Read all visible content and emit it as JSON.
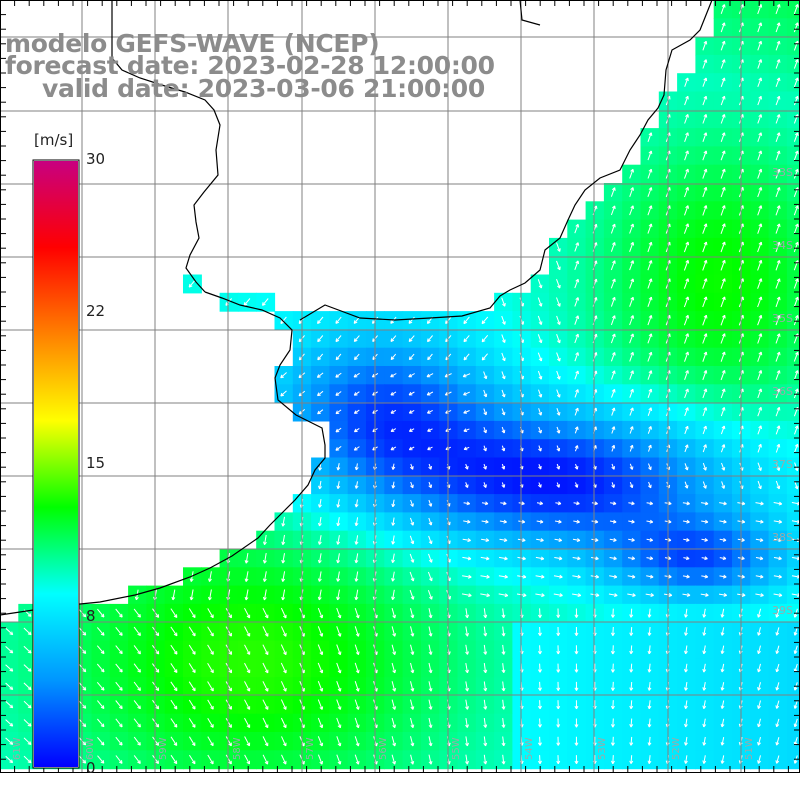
{
  "title": {
    "line1": "modelo GEFS-WAVE (NCEP)",
    "line2": "forecast date: 2023-02-28 12:00:00",
    "line3": "valid date: 2023-03-06 21:00:00"
  },
  "colorbar": {
    "unit": "[m/s]",
    "ticks": [
      "30",
      "22",
      "15",
      "8",
      "0"
    ],
    "tick_values": [
      30,
      22,
      15,
      8,
      0
    ],
    "range": [
      0,
      30
    ],
    "colors": [
      "#0000ff",
      "#0096ff",
      "#00ffff",
      "#00ff00",
      "#ffff00",
      "#ff8000",
      "#ff0000",
      "#c80080"
    ]
  },
  "map": {
    "variable": "wind speed and direction",
    "region": "Rio de la Plata / South Atlantic coast",
    "lat_labels": [
      "33S",
      "34S",
      "35S",
      "36S",
      "37S",
      "38S",
      "39S"
    ],
    "lon_labels": [
      "61W",
      "60W",
      "59W",
      "58W",
      "57W",
      "56W",
      "55W",
      "54W",
      "53W",
      "52W",
      "51W"
    ],
    "land_color": "#ffffff",
    "coastline_color": "#000000",
    "grid_color": "#808080",
    "arrow_color": "#ffffff"
  }
}
